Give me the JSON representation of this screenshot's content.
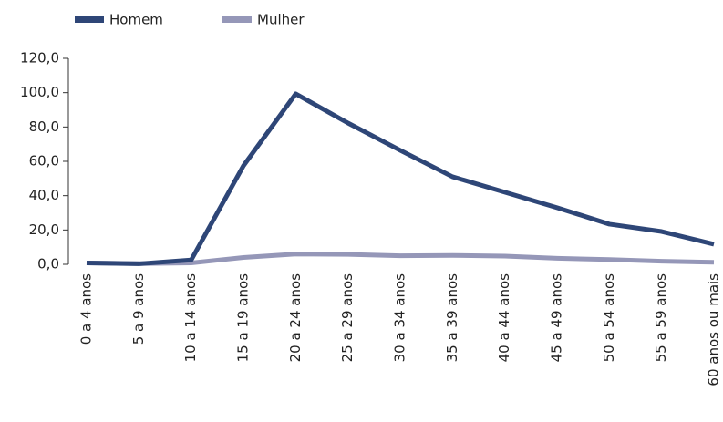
{
  "chart_data": {
    "type": "line",
    "categories": [
      "0 a 4 anos",
      "5 a 9 anos",
      "10 a 14 anos",
      "15 a 19 anos",
      "20 a 24 anos",
      "25 a 29 anos",
      "30 a 34 anos",
      "35 a 39 anos",
      "40 a 44 anos",
      "45 a 49 anos",
      "50 a 54 anos",
      "55 a 59 anos",
      "60 anos ou mais"
    ],
    "series": [
      {
        "name": "Homem",
        "color": "#2e4677",
        "values": [
          0.8,
          0.3,
          2.5,
          57.4,
          99.3,
          82.3,
          66.4,
          51,
          42,
          33,
          23.4,
          19.1,
          11.7
        ]
      },
      {
        "name": "Mulher",
        "color": "#9597b8",
        "values": [
          0.8,
          0.4,
          0.8,
          4,
          6,
          5.8,
          5,
          5.2,
          4.8,
          3.5,
          2.8,
          1.8,
          1.2
        ]
      }
    ],
    "ylim": [
      0,
      120
    ],
    "yticks": [
      {
        "value": 0,
        "label": "0,0"
      },
      {
        "value": 20,
        "label": "20,0"
      },
      {
        "value": 40,
        "label": "40,0"
      },
      {
        "value": 60,
        "label": "60,0"
      },
      {
        "value": 80,
        "label": "80,0"
      },
      {
        "value": 100,
        "label": "100,0"
      },
      {
        "value": 120,
        "label": "120,0"
      }
    ],
    "legend": "top-left"
  }
}
